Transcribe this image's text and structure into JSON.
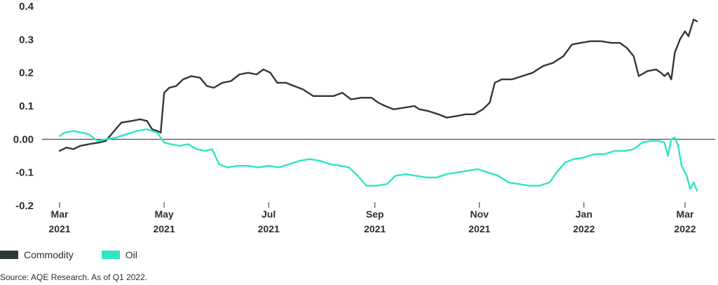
{
  "colors": {
    "commodity": "#2f3a33",
    "oil": "#2ee6c0",
    "axis": "#2a2f2c"
  },
  "legend": {
    "commodity": "Commodity",
    "oil": "Oil"
  },
  "source": "Source: AQE Research. As of Q1 2022.",
  "chart_data": {
    "type": "line",
    "ylim": [
      -0.2,
      0.4
    ],
    "yticks": [
      "0.4",
      "0.3",
      "0.2",
      "0.1",
      "0.00",
      "-0.1",
      "-0.2"
    ],
    "ytick_values": [
      0.4,
      0.3,
      0.2,
      0.1,
      0.0,
      -0.1,
      -0.2
    ],
    "xticks": [
      {
        "month": "Mar",
        "year": "2021",
        "date": "2021-03-01"
      },
      {
        "month": "May",
        "year": "2021",
        "date": "2021-05-01"
      },
      {
        "month": "Jul",
        "year": "2021",
        "date": "2021-07-01"
      },
      {
        "month": "Sep",
        "year": "2021",
        "date": "2021-09-01"
      },
      {
        "month": "Nov",
        "year": "2021",
        "date": "2021-11-01"
      },
      {
        "month": "Jan",
        "year": "2022",
        "date": "2022-01-01"
      },
      {
        "month": "Mar",
        "year": "2022",
        "date": "2022-03-01"
      }
    ],
    "series": [
      {
        "name": "Commodity",
        "points": [
          [
            "2021-03-01",
            -0.035
          ],
          [
            "2021-03-05",
            -0.025
          ],
          [
            "2021-03-09",
            -0.03
          ],
          [
            "2021-03-13",
            -0.02
          ],
          [
            "2021-03-18",
            -0.015
          ],
          [
            "2021-03-24",
            -0.01
          ],
          [
            "2021-03-28",
            -0.005
          ],
          [
            "2021-04-01",
            0.02
          ],
          [
            "2021-04-06",
            0.05
          ],
          [
            "2021-04-12",
            0.055
          ],
          [
            "2021-04-17",
            0.06
          ],
          [
            "2021-04-21",
            0.055
          ],
          [
            "2021-04-24",
            0.03
          ],
          [
            "2021-04-27",
            0.025
          ],
          [
            "2021-04-29",
            0.02
          ],
          [
            "2021-05-01",
            0.14
          ],
          [
            "2021-05-04",
            0.155
          ],
          [
            "2021-05-08",
            0.16
          ],
          [
            "2021-05-12",
            0.18
          ],
          [
            "2021-05-17",
            0.19
          ],
          [
            "2021-05-22",
            0.185
          ],
          [
            "2021-05-26",
            0.16
          ],
          [
            "2021-05-30",
            0.155
          ],
          [
            "2021-06-04",
            0.17
          ],
          [
            "2021-06-09",
            0.175
          ],
          [
            "2021-06-14",
            0.195
          ],
          [
            "2021-06-19",
            0.2
          ],
          [
            "2021-06-24",
            0.195
          ],
          [
            "2021-06-28",
            0.21
          ],
          [
            "2021-07-02",
            0.2
          ],
          [
            "2021-07-06",
            0.17
          ],
          [
            "2021-07-11",
            0.17
          ],
          [
            "2021-07-16",
            0.16
          ],
          [
            "2021-07-21",
            0.15
          ],
          [
            "2021-07-27",
            0.13
          ],
          [
            "2021-08-02",
            0.13
          ],
          [
            "2021-08-08",
            0.13
          ],
          [
            "2021-08-13",
            0.14
          ],
          [
            "2021-08-18",
            0.12
          ],
          [
            "2021-08-24",
            0.125
          ],
          [
            "2021-08-30",
            0.125
          ],
          [
            "2021-09-03",
            0.11
          ],
          [
            "2021-09-07",
            0.1
          ],
          [
            "2021-09-12",
            0.09
          ],
          [
            "2021-09-18",
            0.095
          ],
          [
            "2021-09-24",
            0.1
          ],
          [
            "2021-09-27",
            0.09
          ],
          [
            "2021-10-02",
            0.085
          ],
          [
            "2021-10-08",
            0.075
          ],
          [
            "2021-10-13",
            0.065
          ],
          [
            "2021-10-19",
            0.07
          ],
          [
            "2021-10-24",
            0.075
          ],
          [
            "2021-10-29",
            0.075
          ],
          [
            "2021-11-03",
            0.09
          ],
          [
            "2021-11-07",
            0.11
          ],
          [
            "2021-11-10",
            0.17
          ],
          [
            "2021-11-14",
            0.18
          ],
          [
            "2021-11-20",
            0.18
          ],
          [
            "2021-11-26",
            0.19
          ],
          [
            "2021-12-02",
            0.2
          ],
          [
            "2021-12-08",
            0.22
          ],
          [
            "2021-12-14",
            0.23
          ],
          [
            "2021-12-20",
            0.25
          ],
          [
            "2021-12-25",
            0.285
          ],
          [
            "2021-12-30",
            0.29
          ],
          [
            "2022-01-05",
            0.295
          ],
          [
            "2022-01-11",
            0.295
          ],
          [
            "2022-01-17",
            0.29
          ],
          [
            "2022-01-22",
            0.29
          ],
          [
            "2022-01-26",
            0.275
          ],
          [
            "2022-01-30",
            0.25
          ],
          [
            "2022-02-02",
            0.19
          ],
          [
            "2022-02-07",
            0.205
          ],
          [
            "2022-02-12",
            0.21
          ],
          [
            "2022-02-15",
            0.2
          ],
          [
            "2022-02-17",
            0.19
          ],
          [
            "2022-02-19",
            0.2
          ],
          [
            "2022-02-21",
            0.18
          ],
          [
            "2022-02-23",
            0.26
          ],
          [
            "2022-02-26",
            0.3
          ],
          [
            "2022-03-01",
            0.325
          ],
          [
            "2022-03-03",
            0.31
          ],
          [
            "2022-03-06",
            0.36
          ],
          [
            "2022-03-08",
            0.355
          ]
        ]
      },
      {
        "name": "Oil",
        "points": [
          [
            "2021-03-01",
            0.01
          ],
          [
            "2021-03-04",
            0.02
          ],
          [
            "2021-03-09",
            0.025
          ],
          [
            "2021-03-14",
            0.02
          ],
          [
            "2021-03-18",
            0.015
          ],
          [
            "2021-03-23",
            -0.005
          ],
          [
            "2021-03-28",
            0.0
          ],
          [
            "2021-04-03",
            0.005
          ],
          [
            "2021-04-09",
            0.015
          ],
          [
            "2021-04-15",
            0.025
          ],
          [
            "2021-04-21",
            0.03
          ],
          [
            "2021-04-27",
            0.02
          ],
          [
            "2021-05-01",
            -0.01
          ],
          [
            "2021-05-05",
            -0.015
          ],
          [
            "2021-05-10",
            -0.02
          ],
          [
            "2021-05-15",
            -0.015
          ],
          [
            "2021-05-20",
            -0.03
          ],
          [
            "2021-05-25",
            -0.035
          ],
          [
            "2021-05-29",
            -0.03
          ],
          [
            "2021-06-02",
            -0.075
          ],
          [
            "2021-06-07",
            -0.085
          ],
          [
            "2021-06-13",
            -0.08
          ],
          [
            "2021-06-19",
            -0.08
          ],
          [
            "2021-06-25",
            -0.085
          ],
          [
            "2021-07-01",
            -0.08
          ],
          [
            "2021-07-07",
            -0.085
          ],
          [
            "2021-07-13",
            -0.075
          ],
          [
            "2021-07-19",
            -0.065
          ],
          [
            "2021-07-25",
            -0.06
          ],
          [
            "2021-07-31",
            -0.065
          ],
          [
            "2021-08-06",
            -0.075
          ],
          [
            "2021-08-12",
            -0.08
          ],
          [
            "2021-08-17",
            -0.085
          ],
          [
            "2021-08-22",
            -0.11
          ],
          [
            "2021-08-27",
            -0.14
          ],
          [
            "2021-09-02",
            -0.14
          ],
          [
            "2021-09-08",
            -0.135
          ],
          [
            "2021-09-13",
            -0.11
          ],
          [
            "2021-09-19",
            -0.105
          ],
          [
            "2021-09-25",
            -0.11
          ],
          [
            "2021-10-01",
            -0.115
          ],
          [
            "2021-10-07",
            -0.115
          ],
          [
            "2021-10-13",
            -0.105
          ],
          [
            "2021-10-19",
            -0.1
          ],
          [
            "2021-10-25",
            -0.095
          ],
          [
            "2021-10-31",
            -0.09
          ],
          [
            "2021-11-06",
            -0.1
          ],
          [
            "2021-11-12",
            -0.11
          ],
          [
            "2021-11-18",
            -0.13
          ],
          [
            "2021-11-24",
            -0.135
          ],
          [
            "2021-11-30",
            -0.14
          ],
          [
            "2021-12-06",
            -0.14
          ],
          [
            "2021-12-12",
            -0.13
          ],
          [
            "2021-12-16",
            -0.1
          ],
          [
            "2021-12-21",
            -0.07
          ],
          [
            "2021-12-26",
            -0.06
          ],
          [
            "2022-01-01",
            -0.055
          ],
          [
            "2022-01-07",
            -0.045
          ],
          [
            "2022-01-13",
            -0.045
          ],
          [
            "2022-01-19",
            -0.035
          ],
          [
            "2022-01-25",
            -0.035
          ],
          [
            "2022-01-30",
            -0.03
          ],
          [
            "2022-02-04",
            -0.01
          ],
          [
            "2022-02-09",
            -0.005
          ],
          [
            "2022-02-14",
            -0.005
          ],
          [
            "2022-02-17",
            -0.01
          ],
          [
            "2022-02-19",
            -0.05
          ],
          [
            "2022-02-21",
            0.0
          ],
          [
            "2022-02-23",
            0.005
          ],
          [
            "2022-02-25",
            -0.02
          ],
          [
            "2022-02-27",
            -0.08
          ],
          [
            "2022-03-02",
            -0.11
          ],
          [
            "2022-03-04",
            -0.15
          ],
          [
            "2022-03-06",
            -0.13
          ],
          [
            "2022-03-08",
            -0.155
          ]
        ]
      }
    ]
  }
}
